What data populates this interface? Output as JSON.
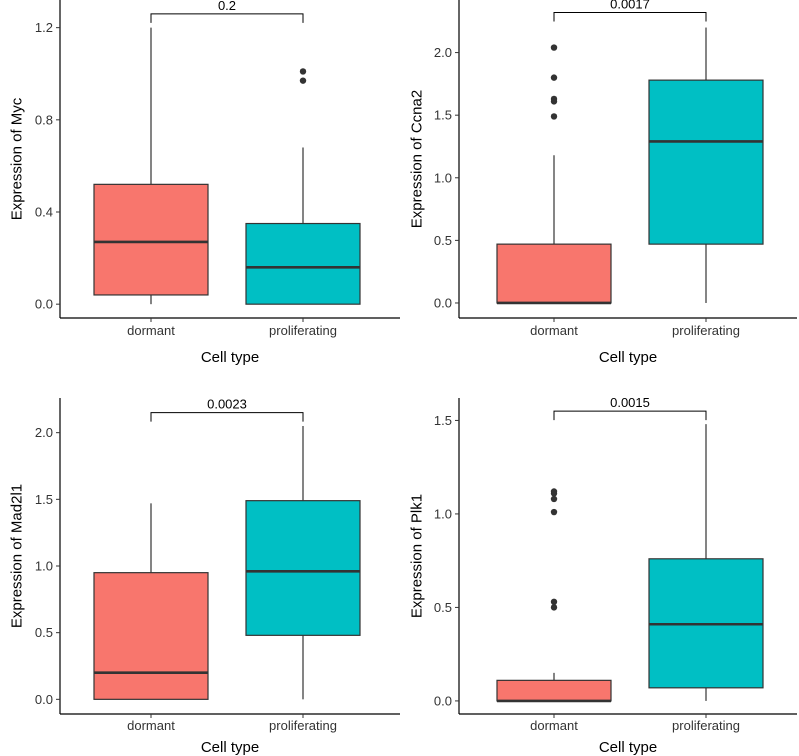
{
  "colors": {
    "dormant": "#f8766d",
    "proliferating": "#00bfc4",
    "line": "#333333"
  },
  "chart_data": [
    {
      "type": "box",
      "xlabel": "Cell type",
      "ylabel": "Expression of Myc",
      "categories": [
        "dormant",
        "proliferating"
      ],
      "ylim": [
        -0.06,
        1.32
      ],
      "yticks": [
        0.0,
        0.4,
        0.8,
        1.2
      ],
      "ytick_labels": [
        "0.0",
        "0.4",
        "0.8",
        "1.2"
      ],
      "pvalue": "0.2",
      "bracket_y": 1.26,
      "boxes": [
        {
          "name": "dormant",
          "whisker_low": 0.0,
          "q1": 0.04,
          "median": 0.27,
          "q3": 0.52,
          "whisker_high": 1.2,
          "outliers": []
        },
        {
          "name": "proliferating",
          "whisker_low": 0.0,
          "q1": 0.0,
          "median": 0.16,
          "q3": 0.35,
          "whisker_high": 0.68,
          "outliers": [
            0.97,
            1.01
          ]
        }
      ]
    },
    {
      "type": "box",
      "xlabel": "Cell type",
      "ylabel": "Expression of Ccna2",
      "categories": [
        "dormant",
        "proliferating"
      ],
      "ylim": [
        -0.12,
        2.42
      ],
      "yticks": [
        0.0,
        0.5,
        1.0,
        1.5,
        2.0
      ],
      "ytick_labels": [
        "0.0",
        "0.5",
        "1.0",
        "1.5",
        "2.0"
      ],
      "pvalue": "0.0017",
      "bracket_y": 2.32,
      "boxes": [
        {
          "name": "dormant",
          "whisker_low": 0.0,
          "q1": 0.0,
          "median": 0.0,
          "q3": 0.47,
          "whisker_high": 1.18,
          "outliers": [
            1.49,
            1.61,
            1.63,
            1.8,
            2.04
          ]
        },
        {
          "name": "proliferating",
          "whisker_low": 0.0,
          "q1": 0.47,
          "median": 1.29,
          "q3": 1.78,
          "whisker_high": 2.2,
          "outliers": []
        }
      ]
    },
    {
      "type": "box",
      "xlabel": "Cell type",
      "ylabel": "Expression of Mad2l1",
      "categories": [
        "dormant",
        "proliferating"
      ],
      "ylim": [
        -0.11,
        2.26
      ],
      "yticks": [
        0.0,
        0.5,
        1.0,
        1.5,
        2.0
      ],
      "ytick_labels": [
        "0.0",
        "0.5",
        "1.0",
        "1.5",
        "2.0"
      ],
      "pvalue": "0.0023",
      "bracket_y": 2.15,
      "boxes": [
        {
          "name": "dormant",
          "whisker_low": 0.0,
          "q1": 0.0,
          "median": 0.2,
          "q3": 0.95,
          "whisker_high": 1.47,
          "outliers": []
        },
        {
          "name": "proliferating",
          "whisker_low": 0.0,
          "q1": 0.48,
          "median": 0.96,
          "q3": 1.49,
          "whisker_high": 2.05,
          "outliers": []
        }
      ]
    },
    {
      "type": "box",
      "xlabel": "Cell type",
      "ylabel": "Expression of Plk1",
      "categories": [
        "dormant",
        "proliferating"
      ],
      "ylim": [
        -0.07,
        1.62
      ],
      "yticks": [
        0.0,
        0.5,
        1.0,
        1.5
      ],
      "ytick_labels": [
        "0.0",
        "0.5",
        "1.0",
        "1.5"
      ],
      "pvalue": "0.0015",
      "bracket_y": 1.55,
      "boxes": [
        {
          "name": "dormant",
          "whisker_low": 0.0,
          "q1": 0.0,
          "median": 0.0,
          "q3": 0.11,
          "whisker_high": 0.15,
          "outliers": [
            0.5,
            0.53,
            1.01,
            1.08,
            1.11,
            1.12
          ]
        },
        {
          "name": "proliferating",
          "whisker_low": 0.0,
          "q1": 0.07,
          "median": 0.41,
          "q3": 0.76,
          "whisker_high": 1.48,
          "outliers": []
        }
      ]
    }
  ]
}
